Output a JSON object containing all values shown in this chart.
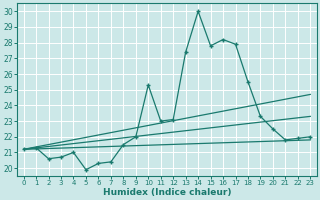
{
  "xlabel": "Humidex (Indice chaleur)",
  "bg_color": "#cce8e8",
  "grid_color": "#ffffff",
  "line_color": "#1a7a6e",
  "xlim": [
    -0.5,
    23.5
  ],
  "ylim": [
    19.5,
    30.5
  ],
  "yticks": [
    20,
    21,
    22,
    23,
    24,
    25,
    26,
    27,
    28,
    29,
    30
  ],
  "xticks": [
    0,
    1,
    2,
    3,
    4,
    5,
    6,
    7,
    8,
    9,
    10,
    11,
    12,
    13,
    14,
    15,
    16,
    17,
    18,
    19,
    20,
    21,
    22,
    23
  ],
  "main_series": {
    "x": [
      0,
      1,
      2,
      3,
      4,
      5,
      6,
      7,
      8,
      9,
      10,
      11,
      12,
      13,
      14,
      15,
      16,
      17,
      18,
      19,
      20,
      21,
      22,
      23
    ],
    "y": [
      21.2,
      21.3,
      20.6,
      20.7,
      21.0,
      19.9,
      20.3,
      20.4,
      21.5,
      22.0,
      25.3,
      23.0,
      23.1,
      27.4,
      30.0,
      27.8,
      28.2,
      27.9,
      25.5,
      23.3,
      22.5,
      21.8,
      21.9,
      22.0
    ]
  },
  "trend_lines": [
    {
      "x": [
        0,
        23
      ],
      "y": [
        21.2,
        24.7
      ]
    },
    {
      "x": [
        0,
        23
      ],
      "y": [
        21.2,
        23.3
      ]
    },
    {
      "x": [
        0,
        23
      ],
      "y": [
        21.2,
        21.8
      ]
    }
  ]
}
